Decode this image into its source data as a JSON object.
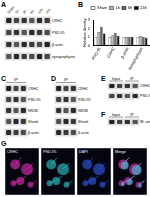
{
  "panels": {
    "A": {
      "label": "A",
      "lanes": [
        "Sham",
        "1h",
        "3h",
        "6h",
        "12h",
        "24h"
      ],
      "rows": [
        "CRHC",
        "PSD-95",
        "β-actin",
        "synaptophysin"
      ]
    },
    "B": {
      "label": "B"
    },
    "C": {
      "label": "C",
      "header": "IP",
      "rows": [
        "CRHC",
        "PSD-95",
        "NR2B",
        "Shank",
        "β-actin"
      ]
    },
    "D": {
      "label": "D",
      "header": "IP",
      "rows": [
        "CRHC",
        "PSD-95",
        "NR2B",
        "Shank",
        "β-actin"
      ]
    },
    "E": {
      "label": "E",
      "header": [
        "Input",
        "IP"
      ],
      "rows": [
        "CRHC",
        "PSD-95"
      ]
    },
    "F": {
      "label": "F",
      "header": [
        "Input",
        "IP"
      ],
      "rows": [
        "IB: anti-Shank"
      ]
    },
    "G": {
      "label": "G",
      "images": [
        "CRHC",
        "PSD-95",
        "DAPI",
        "Merge"
      ]
    }
  },
  "chart_data": {
    "type": "bar",
    "categories": [
      "PSD-95",
      "CRHC",
      "β-actin",
      "synaptophysin"
    ],
    "series": [
      {
        "name": "Sham",
        "color": "#ffffff",
        "values": [
          1.0,
          1.0,
          1.0,
          1.0
        ]
      },
      {
        "name": "1h",
        "color": "#bbbbbb",
        "values": [
          1.6,
          1.2,
          1.0,
          1.1
        ]
      },
      {
        "name": "6h",
        "color": "#666666",
        "values": [
          2.2,
          1.5,
          1.0,
          1.0
        ]
      },
      {
        "name": "24h",
        "color": "#111111",
        "values": [
          1.4,
          1.1,
          1.0,
          0.9
        ]
      }
    ],
    "y_label": "Relative density",
    "ylim": [
      0,
      3
    ],
    "yticks": [
      0,
      1,
      2,
      3
    ],
    "legend": "top",
    "grid": false
  }
}
